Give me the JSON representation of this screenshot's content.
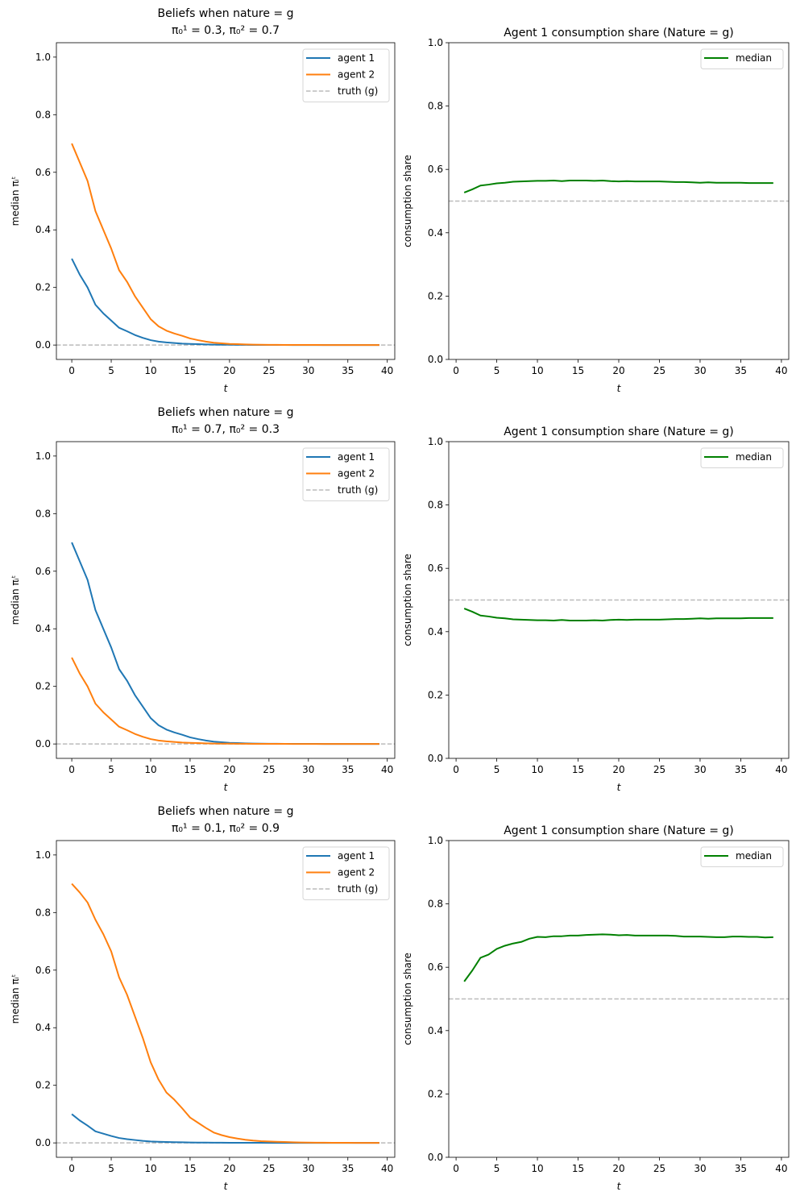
{
  "chart_data": [
    {
      "type": "line",
      "title": "Beliefs when nature = g",
      "subtitle": "π₀¹ = 0.3, π₀² = 0.7",
      "xlabel": "t",
      "ylabel": "median πᵢᵗ",
      "xlim": [
        -1.95,
        40.95
      ],
      "ylim": [
        -0.05,
        1.05
      ],
      "xticks": [
        0,
        5,
        10,
        15,
        20,
        25,
        30,
        35,
        40
      ],
      "yticks": [
        "0.0",
        "0.2",
        "0.4",
        "0.6",
        "0.8",
        "1.0"
      ],
      "x_start": 0,
      "legend": "top-right",
      "series": [
        {
          "name": "agent 1",
          "color": "#1f77b4",
          "values": [
            0.3,
            0.245,
            0.2,
            0.14,
            0.11,
            0.085,
            0.06,
            0.048,
            0.035,
            0.025,
            0.017,
            0.012,
            0.009,
            0.007,
            0.005,
            0.004,
            0.003,
            0.002,
            0.0015,
            0.001,
            0.001,
            0.0008,
            0.0006,
            0.0005,
            0.0004,
            0.0003,
            0.0002,
            0.0002,
            0.0001,
            0.0001,
            0.0001,
            0,
            0,
            0,
            0,
            0,
            0,
            0,
            0,
            0
          ]
        },
        {
          "name": "agent 2",
          "color": "#ff7f0e",
          "values": [
            0.7,
            0.635,
            0.57,
            0.465,
            0.4,
            0.335,
            0.26,
            0.22,
            0.17,
            0.13,
            0.09,
            0.065,
            0.05,
            0.04,
            0.032,
            0.023,
            0.017,
            0.012,
            0.008,
            0.006,
            0.004,
            0.003,
            0.002,
            0.0015,
            0.001,
            0.0008,
            0.0006,
            0.0005,
            0.0004,
            0.0003,
            0.0002,
            0.0002,
            0.0001,
            0.0001,
            0.0001,
            0,
            0,
            0,
            0,
            0
          ]
        }
      ],
      "reference": {
        "name": "truth (g)",
        "value": 0,
        "color": "#bbbbbb"
      }
    },
    {
      "type": "line",
      "title": "Agent 1 consumption share (Nature = g)",
      "xlabel": "t",
      "ylabel": "consumption share",
      "xlim": [
        -0.9,
        40.9
      ],
      "ylim": [
        0,
        1
      ],
      "xticks": [
        0,
        5,
        10,
        15,
        20,
        25,
        30,
        35,
        40
      ],
      "yticks": [
        "0.0",
        "0.2",
        "0.4",
        "0.6",
        "0.8",
        "1.0"
      ],
      "x_start": 1,
      "legend": "top-right",
      "series": [
        {
          "name": "median",
          "color": "#008000",
          "values": [
            0.527,
            0.537,
            0.549,
            0.552,
            0.556,
            0.558,
            0.561,
            0.562,
            0.563,
            0.564,
            0.564,
            0.565,
            0.563,
            0.565,
            0.565,
            0.565,
            0.564,
            0.565,
            0.563,
            0.562,
            0.563,
            0.562,
            0.562,
            0.562,
            0.562,
            0.561,
            0.56,
            0.56,
            0.559,
            0.558,
            0.559,
            0.558,
            0.558,
            0.558,
            0.558,
            0.557,
            0.557,
            0.557,
            0.557
          ]
        }
      ],
      "reference": {
        "value": 0.5,
        "color": "#bbbbbb"
      }
    },
    {
      "type": "line",
      "title": "Beliefs when nature = g",
      "subtitle": "π₀¹ = 0.7, π₀² = 0.3",
      "xlabel": "t",
      "ylabel": "median πᵢᵗ",
      "xlim": [
        -1.95,
        40.95
      ],
      "ylim": [
        -0.05,
        1.05
      ],
      "xticks": [
        0,
        5,
        10,
        15,
        20,
        25,
        30,
        35,
        40
      ],
      "yticks": [
        "0.0",
        "0.2",
        "0.4",
        "0.6",
        "0.8",
        "1.0"
      ],
      "x_start": 0,
      "legend": "top-right",
      "series": [
        {
          "name": "agent 1",
          "color": "#1f77b4",
          "values": [
            0.7,
            0.635,
            0.57,
            0.465,
            0.4,
            0.335,
            0.26,
            0.22,
            0.17,
            0.13,
            0.09,
            0.065,
            0.05,
            0.04,
            0.032,
            0.023,
            0.017,
            0.012,
            0.008,
            0.006,
            0.004,
            0.003,
            0.002,
            0.0015,
            0.001,
            0.0008,
            0.0006,
            0.0005,
            0.0004,
            0.0003,
            0.0002,
            0.0002,
            0.0001,
            0.0001,
            0.0001,
            0,
            0,
            0,
            0,
            0
          ]
        },
        {
          "name": "agent 2",
          "color": "#ff7f0e",
          "values": [
            0.3,
            0.245,
            0.2,
            0.14,
            0.11,
            0.085,
            0.06,
            0.048,
            0.035,
            0.025,
            0.017,
            0.012,
            0.009,
            0.007,
            0.005,
            0.004,
            0.003,
            0.002,
            0.0015,
            0.001,
            0.001,
            0.0008,
            0.0006,
            0.0005,
            0.0004,
            0.0003,
            0.0002,
            0.0002,
            0.0001,
            0.0001,
            0.0001,
            0,
            0,
            0,
            0,
            0,
            0,
            0,
            0,
            0
          ]
        }
      ],
      "reference": {
        "name": "truth (g)",
        "value": 0,
        "color": "#bbbbbb"
      }
    },
    {
      "type": "line",
      "title": "Agent 1 consumption share (Nature = g)",
      "xlabel": "t",
      "ylabel": "consumption share",
      "xlim": [
        -0.9,
        40.9
      ],
      "ylim": [
        0,
        1
      ],
      "xticks": [
        0,
        5,
        10,
        15,
        20,
        25,
        30,
        35,
        40
      ],
      "yticks": [
        "0.0",
        "0.2",
        "0.4",
        "0.6",
        "0.8",
        "1.0"
      ],
      "x_start": 1,
      "legend": "top-right",
      "series": [
        {
          "name": "median",
          "color": "#008000",
          "values": [
            0.473,
            0.463,
            0.451,
            0.448,
            0.444,
            0.442,
            0.439,
            0.438,
            0.437,
            0.436,
            0.436,
            0.435,
            0.437,
            0.435,
            0.435,
            0.435,
            0.436,
            0.435,
            0.437,
            0.438,
            0.437,
            0.438,
            0.438,
            0.438,
            0.438,
            0.439,
            0.44,
            0.44,
            0.441,
            0.442,
            0.441,
            0.442,
            0.442,
            0.442,
            0.442,
            0.443,
            0.443,
            0.443,
            0.443
          ]
        }
      ],
      "reference": {
        "value": 0.5,
        "color": "#bbbbbb"
      }
    },
    {
      "type": "line",
      "title": "Beliefs when nature = g",
      "subtitle": "π₀¹ = 0.1, π₀² = 0.9",
      "xlabel": "t",
      "ylabel": "median πᵢᵗ",
      "xlim": [
        -1.95,
        40.95
      ],
      "ylim": [
        -0.05,
        1.05
      ],
      "xticks": [
        0,
        5,
        10,
        15,
        20,
        25,
        30,
        35,
        40
      ],
      "yticks": [
        "0.0",
        "0.2",
        "0.4",
        "0.6",
        "0.8",
        "1.0"
      ],
      "x_start": 0,
      "legend": "top-right",
      "series": [
        {
          "name": "agent 1",
          "color": "#1f77b4",
          "values": [
            0.1,
            0.078,
            0.06,
            0.04,
            0.032,
            0.024,
            0.017,
            0.013,
            0.01,
            0.007,
            0.005,
            0.004,
            0.003,
            0.0025,
            0.002,
            0.0015,
            0.0012,
            0.001,
            0.0008,
            0.0006,
            0.0005,
            0.0004,
            0.0003,
            0.0002,
            0.0002,
            0.0001,
            0.0001,
            0.0001,
            0,
            0,
            0,
            0,
            0,
            0,
            0,
            0,
            0,
            0,
            0,
            0
          ]
        },
        {
          "name": "agent 2",
          "color": "#ff7f0e",
          "values": [
            0.9,
            0.87,
            0.835,
            0.775,
            0.725,
            0.665,
            0.575,
            0.515,
            0.44,
            0.365,
            0.28,
            0.22,
            0.175,
            0.15,
            0.12,
            0.088,
            0.07,
            0.052,
            0.036,
            0.027,
            0.02,
            0.015,
            0.011,
            0.008,
            0.006,
            0.005,
            0.004,
            0.003,
            0.002,
            0.0015,
            0.001,
            0.0008,
            0.0006,
            0.0004,
            0.0003,
            0.0002,
            0.0001,
            0.0001,
            0,
            0
          ]
        }
      ],
      "reference": {
        "name": "truth (g)",
        "value": 0,
        "color": "#bbbbbb"
      }
    },
    {
      "type": "line",
      "title": "Agent 1 consumption share (Nature = g)",
      "xlabel": "t",
      "ylabel": "consumption share",
      "xlim": [
        -0.9,
        40.9
      ],
      "ylim": [
        0,
        1
      ],
      "xticks": [
        0,
        5,
        10,
        15,
        20,
        25,
        30,
        35,
        40
      ],
      "yticks": [
        "0.0",
        "0.2",
        "0.4",
        "0.6",
        "0.8",
        "1.0"
      ],
      "x_start": 1,
      "legend": "top-right",
      "series": [
        {
          "name": "median",
          "color": "#008000",
          "values": [
            0.555,
            0.59,
            0.63,
            0.64,
            0.658,
            0.668,
            0.675,
            0.68,
            0.69,
            0.696,
            0.695,
            0.698,
            0.698,
            0.7,
            0.7,
            0.702,
            0.703,
            0.704,
            0.703,
            0.701,
            0.702,
            0.7,
            0.7,
            0.7,
            0.7,
            0.7,
            0.699,
            0.697,
            0.697,
            0.697,
            0.696,
            0.695,
            0.695,
            0.697,
            0.697,
            0.696,
            0.696,
            0.694,
            0.695
          ]
        }
      ],
      "reference": {
        "value": 0.5,
        "color": "#bbbbbb"
      }
    }
  ]
}
